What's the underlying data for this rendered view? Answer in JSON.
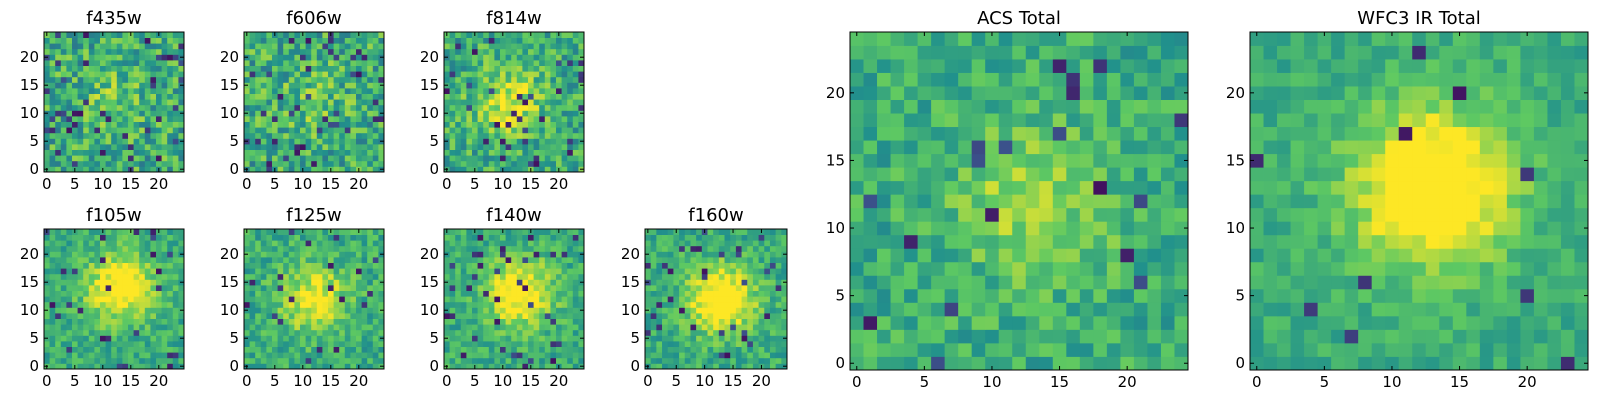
{
  "figure": {
    "colormap": "viridis",
    "colors": [
      "#440154",
      "#3b528b",
      "#21918c",
      "#5ec962",
      "#fde725"
    ]
  },
  "chart_data": [
    {
      "type": "heatmap",
      "title": "f435w",
      "grid": [
        25,
        25
      ],
      "xlim": [
        0,
        24
      ],
      "ylim": [
        0,
        24
      ],
      "xticks": [
        0,
        5,
        10,
        15,
        20
      ],
      "yticks": [
        0,
        5,
        10,
        15,
        20
      ],
      "center": [
        12,
        12
      ],
      "peak_strength": 0.12,
      "noise": 0.45,
      "dark_pixels": 0.07,
      "seed": 11
    },
    {
      "type": "heatmap",
      "title": "f606w",
      "grid": [
        25,
        25
      ],
      "xlim": [
        0,
        24
      ],
      "ylim": [
        0,
        24
      ],
      "xticks": [
        0,
        5,
        10,
        15,
        20
      ],
      "yticks": [
        0,
        5,
        10,
        15,
        20
      ],
      "center": [
        12,
        12
      ],
      "peak_strength": 0.12,
      "noise": 0.45,
      "dark_pixels": 0.06,
      "seed": 23
    },
    {
      "type": "heatmap",
      "title": "f814w",
      "grid": [
        25,
        25
      ],
      "xlim": [
        0,
        24
      ],
      "ylim": [
        0,
        24
      ],
      "xticks": [
        0,
        5,
        10,
        15,
        20
      ],
      "yticks": [
        0,
        5,
        10,
        15,
        20
      ],
      "center": [
        11,
        12
      ],
      "peak_strength": 0.35,
      "noise": 0.4,
      "dark_pixels": 0.05,
      "seed": 37
    },
    {
      "type": "heatmap",
      "title": "f105w",
      "grid": [
        25,
        25
      ],
      "xlim": [
        0,
        24
      ],
      "ylim": [
        0,
        24
      ],
      "xticks": [
        0,
        5,
        10,
        15,
        20
      ],
      "yticks": [
        0,
        5,
        10,
        15,
        20
      ],
      "center": [
        13,
        14
      ],
      "peak_strength": 0.5,
      "noise": 0.28,
      "dark_pixels": 0.04,
      "seed": 41
    },
    {
      "type": "heatmap",
      "title": "f125w",
      "grid": [
        25,
        25
      ],
      "xlim": [
        0,
        24
      ],
      "ylim": [
        0,
        24
      ],
      "xticks": [
        0,
        5,
        10,
        15,
        20
      ],
      "yticks": [
        0,
        5,
        10,
        15,
        20
      ],
      "center": [
        12,
        12
      ],
      "peak_strength": 0.4,
      "noise": 0.3,
      "dark_pixels": 0.03,
      "seed": 53
    },
    {
      "type": "heatmap",
      "title": "f140w",
      "grid": [
        25,
        25
      ],
      "xlim": [
        0,
        24
      ],
      "ylim": [
        0,
        24
      ],
      "xticks": [
        0,
        5,
        10,
        15,
        20
      ],
      "yticks": [
        0,
        5,
        10,
        15,
        20
      ],
      "center": [
        13,
        13
      ],
      "peak_strength": 0.5,
      "noise": 0.28,
      "dark_pixels": 0.05,
      "seed": 67
    },
    {
      "type": "heatmap",
      "title": "f160w",
      "grid": [
        25,
        25
      ],
      "xlim": [
        0,
        24
      ],
      "ylim": [
        0,
        24
      ],
      "xticks": [
        0,
        5,
        10,
        15,
        20
      ],
      "yticks": [
        0,
        5,
        10,
        15,
        20
      ],
      "center": [
        13,
        12
      ],
      "peak_strength": 0.55,
      "noise": 0.28,
      "dark_pixels": 0.06,
      "seed": 79
    },
    {
      "type": "heatmap",
      "title": "ACS Total",
      "grid": [
        25,
        25
      ],
      "xlim": [
        0,
        24
      ],
      "ylim": [
        0,
        24
      ],
      "xticks": [
        0,
        5,
        10,
        15,
        20
      ],
      "yticks": [
        0,
        5,
        10,
        15,
        20
      ],
      "center": [
        13,
        12
      ],
      "peak_strength": 0.25,
      "noise": 0.3,
      "dark_pixels": 0.03,
      "seed": 97
    },
    {
      "type": "heatmap",
      "title": "WFC3 IR Total",
      "grid": [
        25,
        25
      ],
      "xlim": [
        0,
        24
      ],
      "ylim": [
        0,
        24
      ],
      "xticks": [
        0,
        5,
        10,
        15,
        20
      ],
      "yticks": [
        0,
        5,
        10,
        15,
        20
      ],
      "center": [
        13,
        13
      ],
      "peak_strength": 0.6,
      "noise": 0.2,
      "dark_pixels": 0.02,
      "seed": 131
    }
  ]
}
